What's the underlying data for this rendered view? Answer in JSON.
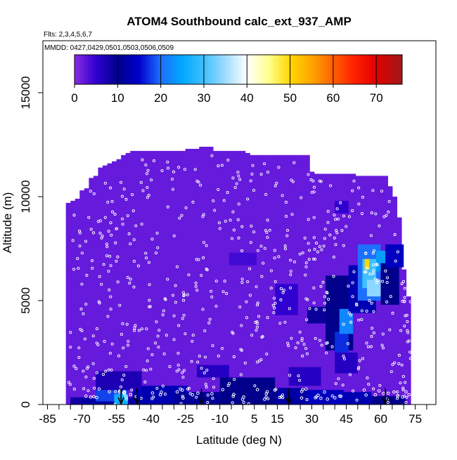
{
  "chart_data": {
    "type": "heatmap",
    "title": "ATOM4 Southbound calc_ext_937_AMP",
    "flights_label": "Flts: 2,3,4,5,6,7",
    "dates_label": "MMDD: 0427,0429,0501,0503,0506,0509",
    "xlabel": "Latitude (deg N)",
    "ylabel": "Altitude (m)",
    "xlim": [
      -87,
      84
    ],
    "ylim": [
      0,
      17500
    ],
    "x_ticks": [
      -85,
      -70,
      -55,
      -40,
      -25,
      -10,
      5,
      15,
      30,
      45,
      60,
      75
    ],
    "x_ticks_unlabeled": [
      -80,
      -75,
      -65,
      -60,
      -50,
      -45,
      -35,
      -30,
      -20,
      -15,
      -5,
      0,
      10,
      20,
      25,
      35,
      40,
      50,
      55,
      65,
      70,
      80
    ],
    "y_ticks": [
      0,
      5000,
      10000,
      15000
    ],
    "colorbar": {
      "range": [
        0,
        76
      ],
      "ticks": [
        0,
        10,
        20,
        30,
        40,
        50,
        60,
        70
      ],
      "stops": [
        {
          "v": 0,
          "c": "#8a2be2"
        },
        {
          "v": 5,
          "c": "#3000d0"
        },
        {
          "v": 10,
          "c": "#00008b"
        },
        {
          "v": 15,
          "c": "#0000cd"
        },
        {
          "v": 20,
          "c": "#1e6fff"
        },
        {
          "v": 25,
          "c": "#00a8ff"
        },
        {
          "v": 30,
          "c": "#40c0ff"
        },
        {
          "v": 35,
          "c": "#a0dcff"
        },
        {
          "v": 40,
          "c": "#ffffff"
        },
        {
          "v": 45,
          "c": "#ffff90"
        },
        {
          "v": 50,
          "c": "#ffd700"
        },
        {
          "v": 55,
          "c": "#ffa500"
        },
        {
          "v": 60,
          "c": "#ff6000"
        },
        {
          "v": 65,
          "c": "#ff2000"
        },
        {
          "v": 70,
          "c": "#e00000"
        },
        {
          "v": 76,
          "c": "#a01818"
        }
      ]
    },
    "background_value": 2,
    "profile_columns": [
      [
        -76,
        9700
      ],
      [
        -74,
        9800
      ],
      [
        -72,
        9900
      ],
      [
        -70,
        10300
      ],
      [
        -68,
        10400
      ],
      [
        -66,
        10900
      ],
      [
        -64,
        11000
      ],
      [
        -62,
        11400
      ],
      [
        -60,
        11500
      ],
      [
        -58,
        11600
      ],
      [
        -56,
        11700
      ],
      [
        -54,
        11800
      ],
      [
        -52,
        12000
      ],
      [
        -50,
        12100
      ],
      [
        -48,
        12200
      ],
      [
        -46,
        12200
      ],
      [
        -44,
        12200
      ],
      [
        -42,
        12200
      ],
      [
        -40,
        12200
      ],
      [
        -38,
        12200
      ],
      [
        -36,
        12200
      ],
      [
        -34,
        12200
      ],
      [
        -32,
        12200
      ],
      [
        -30,
        12200
      ],
      [
        -28,
        12200
      ],
      [
        -26,
        12200
      ],
      [
        -24,
        12300
      ],
      [
        -22,
        12300
      ],
      [
        -20,
        12300
      ],
      [
        -18,
        12400
      ],
      [
        -16,
        12400
      ],
      [
        -14,
        12400
      ],
      [
        -12,
        12200
      ],
      [
        -10,
        12200
      ],
      [
        -8,
        12200
      ],
      [
        -6,
        12200
      ],
      [
        -4,
        12200
      ],
      [
        -2,
        12200
      ],
      [
        0,
        12200
      ],
      [
        2,
        12100
      ],
      [
        4,
        12000
      ],
      [
        6,
        12000
      ],
      [
        8,
        12000
      ],
      [
        10,
        12000
      ],
      [
        12,
        12000
      ],
      [
        14,
        12000
      ],
      [
        16,
        12000
      ],
      [
        18,
        12000
      ],
      [
        20,
        12000
      ],
      [
        22,
        12000
      ],
      [
        24,
        12000
      ],
      [
        26,
        12000
      ],
      [
        28,
        12000
      ],
      [
        30,
        11200
      ],
      [
        32,
        11100
      ],
      [
        34,
        11100
      ],
      [
        36,
        11100
      ],
      [
        38,
        11100
      ],
      [
        40,
        11100
      ],
      [
        42,
        11100
      ],
      [
        44,
        11100
      ],
      [
        46,
        11100
      ],
      [
        48,
        11100
      ],
      [
        50,
        11000
      ],
      [
        52,
        11000
      ],
      [
        54,
        11000
      ],
      [
        56,
        11000
      ],
      [
        58,
        11000
      ],
      [
        60,
        11000
      ],
      [
        62,
        11000
      ],
      [
        64,
        10500
      ],
      [
        66,
        10000
      ],
      [
        68,
        9000
      ],
      [
        70,
        6500
      ],
      [
        72,
        5200
      ]
    ],
    "cells": [
      {
        "x": [
          -75,
          71
        ],
        "y": [
          0,
          350
        ],
        "v": 8
      },
      {
        "x": [
          -70,
          62
        ],
        "y": [
          0,
          250
        ],
        "v": 12
      },
      {
        "x": [
          -64,
          -50
        ],
        "y": [
          150,
          700
        ],
        "v": 18
      },
      {
        "x": [
          -56,
          -50
        ],
        "y": [
          0,
          500
        ],
        "v": 26
      },
      {
        "x": [
          -48,
          -24
        ],
        "y": [
          100,
          900
        ],
        "v": 13
      },
      {
        "x": [
          -64,
          -44
        ],
        "y": [
          700,
          1600
        ],
        "v": 7
      },
      {
        "x": [
          -30,
          -10
        ],
        "y": [
          0,
          600
        ],
        "v": 11
      },
      {
        "x": [
          -10,
          14
        ],
        "y": [
          0,
          1300
        ],
        "v": 10
      },
      {
        "x": [
          14,
          28
        ],
        "y": [
          0,
          800
        ],
        "v": 12
      },
      {
        "x": [
          28,
          44
        ],
        "y": [
          0,
          700
        ],
        "v": 14
      },
      {
        "x": [
          44,
          56
        ],
        "y": [
          0,
          600
        ],
        "v": 13
      },
      {
        "x": [
          56,
          70
        ],
        "y": [
          0,
          400
        ],
        "v": 10
      },
      {
        "x": [
          -20,
          -6
        ],
        "y": [
          1300,
          1900
        ],
        "v": 6
      },
      {
        "x": [
          20,
          34
        ],
        "y": [
          900,
          1800
        ],
        "v": 6
      },
      {
        "x": [
          14,
          24
        ],
        "y": [
          4300,
          5800
        ],
        "v": 5
      },
      {
        "x": [
          28,
          36
        ],
        "y": [
          3900,
          4700
        ],
        "v": 9
      },
      {
        "x": [
          36,
          48
        ],
        "y": [
          2600,
          6200
        ],
        "v": 10
      },
      {
        "x": [
          40,
          46
        ],
        "y": [
          2400,
          3500
        ],
        "v": 17
      },
      {
        "x": [
          42,
          48
        ],
        "y": [
          3400,
          4600
        ],
        "v": 22
      },
      {
        "x": [
          46,
          58
        ],
        "y": [
          4400,
          6700
        ],
        "v": 13
      },
      {
        "x": [
          50,
          60
        ],
        "y": [
          5000,
          7700
        ],
        "v": 20
      },
      {
        "x": [
          52,
          58
        ],
        "y": [
          5600,
          7000
        ],
        "v": 30
      },
      {
        "x": [
          54,
          60
        ],
        "y": [
          5200,
          6000
        ],
        "v": 34
      },
      {
        "x": [
          53,
          55
        ],
        "y": [
          6500,
          7000
        ],
        "v": 50
      },
      {
        "x": [
          58,
          64
        ],
        "y": [
          6400,
          7400
        ],
        "v": 24
      },
      {
        "x": [
          60,
          68
        ],
        "y": [
          4800,
          6800
        ],
        "v": 10
      },
      {
        "x": [
          62,
          70
        ],
        "y": [
          6600,
          7700
        ],
        "v": 14
      },
      {
        "x": [
          40,
          50
        ],
        "y": [
          1500,
          2500
        ],
        "v": 6
      },
      {
        "x": [
          40,
          46
        ],
        "y": [
          9200,
          9800
        ],
        "v": 5
      },
      {
        "x": [
          -6,
          6
        ],
        "y": [
          6700,
          7300
        ],
        "v": 4
      }
    ],
    "flight_markers_x": [
      -53,
      -46,
      -18,
      20,
      62
    ]
  }
}
